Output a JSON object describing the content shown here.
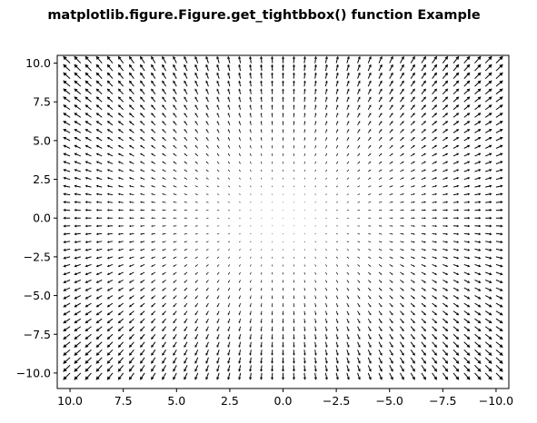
{
  "figure": {
    "title": "matplotlib.figure.Figure.get_tightbbox() function Example"
  },
  "chart_data": {
    "type": "quiver",
    "title": "matplotlib.figure.Figure.get_tightbbox() function Example",
    "xlabel": "",
    "ylabel": "",
    "xlim": [
      10.6,
      -10.6
    ],
    "ylim": [
      -11.0,
      10.5
    ],
    "x_inverted": true,
    "grid": false,
    "x_ticks": [
      10.0,
      7.5,
      5.0,
      2.5,
      0.0,
      -2.5,
      -5.0,
      -7.5,
      -10.0
    ],
    "x_tick_labels": [
      "10.0",
      "7.5",
      "5.0",
      "2.5",
      "0.0",
      "−2.5",
      "−5.0",
      "−7.5",
      "−10.0"
    ],
    "y_ticks": [
      10.0,
      7.5,
      5.0,
      2.5,
      0.0,
      -2.5,
      -5.0,
      -7.5,
      -10.0
    ],
    "y_tick_labels": [
      "10.0",
      "7.5",
      "5.0",
      "2.5",
      "0.0",
      "−2.5",
      "−5.0",
      "−7.5",
      "−10.0"
    ],
    "grid_x": {
      "start": -10.0,
      "stop": 10.0,
      "count": 41
    },
    "grid_y": {
      "start": -10.0,
      "stop": 10.0,
      "count": 41
    },
    "field": {
      "u": "x",
      "v": "y"
    },
    "arrow_color": "#000000"
  }
}
